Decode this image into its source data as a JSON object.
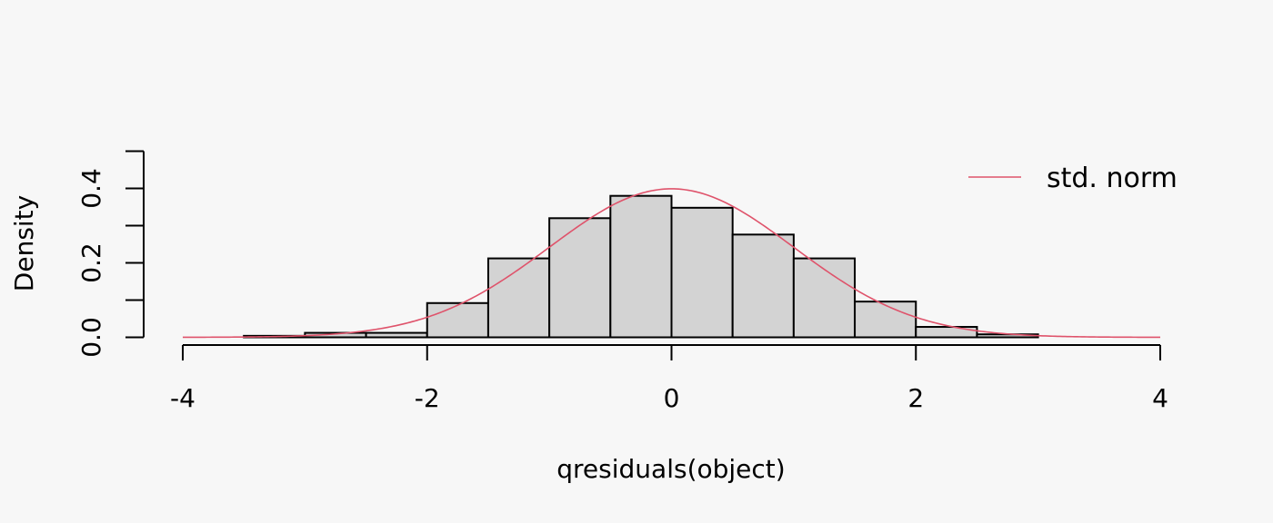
{
  "chart_data": {
    "type": "bar",
    "subtype": "histogram",
    "xlabel": "qresiduals(object)",
    "ylabel": "Density",
    "xlim": [
      -4,
      4
    ],
    "ylim": [
      0,
      0.5
    ],
    "x_ticks": [
      "-4",
      "-2",
      "0",
      "2",
      "4"
    ],
    "x_tick_values": [
      -4,
      -2,
      0,
      2,
      4
    ],
    "y_ticks": [
      "0.0",
      "0.2",
      "0.4"
    ],
    "y_tick_values": [
      0,
      0.2,
      0.4
    ],
    "bins": [
      {
        "x0": -3.5,
        "x1": -3.0,
        "density": 0.004
      },
      {
        "x0": -3.0,
        "x1": -2.5,
        "density": 0.012
      },
      {
        "x0": -2.5,
        "x1": -2.0,
        "density": 0.012
      },
      {
        "x0": -2.0,
        "x1": -1.5,
        "density": 0.092
      },
      {
        "x0": -1.5,
        "x1": -1.0,
        "density": 0.212
      },
      {
        "x0": -1.0,
        "x1": -0.5,
        "density": 0.32
      },
      {
        "x0": -0.5,
        "x1": 0.0,
        "density": 0.38
      },
      {
        "x0": 0.0,
        "x1": 0.5,
        "density": 0.348
      },
      {
        "x0": 0.5,
        "x1": 1.0,
        "density": 0.276
      },
      {
        "x0": 1.0,
        "x1": 1.5,
        "density": 0.212
      },
      {
        "x0": 1.5,
        "x1": 2.0,
        "density": 0.096
      },
      {
        "x0": 2.0,
        "x1": 2.5,
        "density": 0.028
      },
      {
        "x0": 2.5,
        "x1": 3.0,
        "density": 0.008
      }
    ],
    "series": [
      {
        "name": "std. norm",
        "type": "line",
        "color": "#df536b",
        "function": "standard normal density"
      }
    ],
    "legend": {
      "position": "top-right",
      "entries": [
        "std. norm"
      ]
    },
    "colors": {
      "bar_fill": "#d3d3d3",
      "bar_stroke": "#000000",
      "curve": "#df536b",
      "background": "#f7f7f7"
    },
    "grid": false
  }
}
